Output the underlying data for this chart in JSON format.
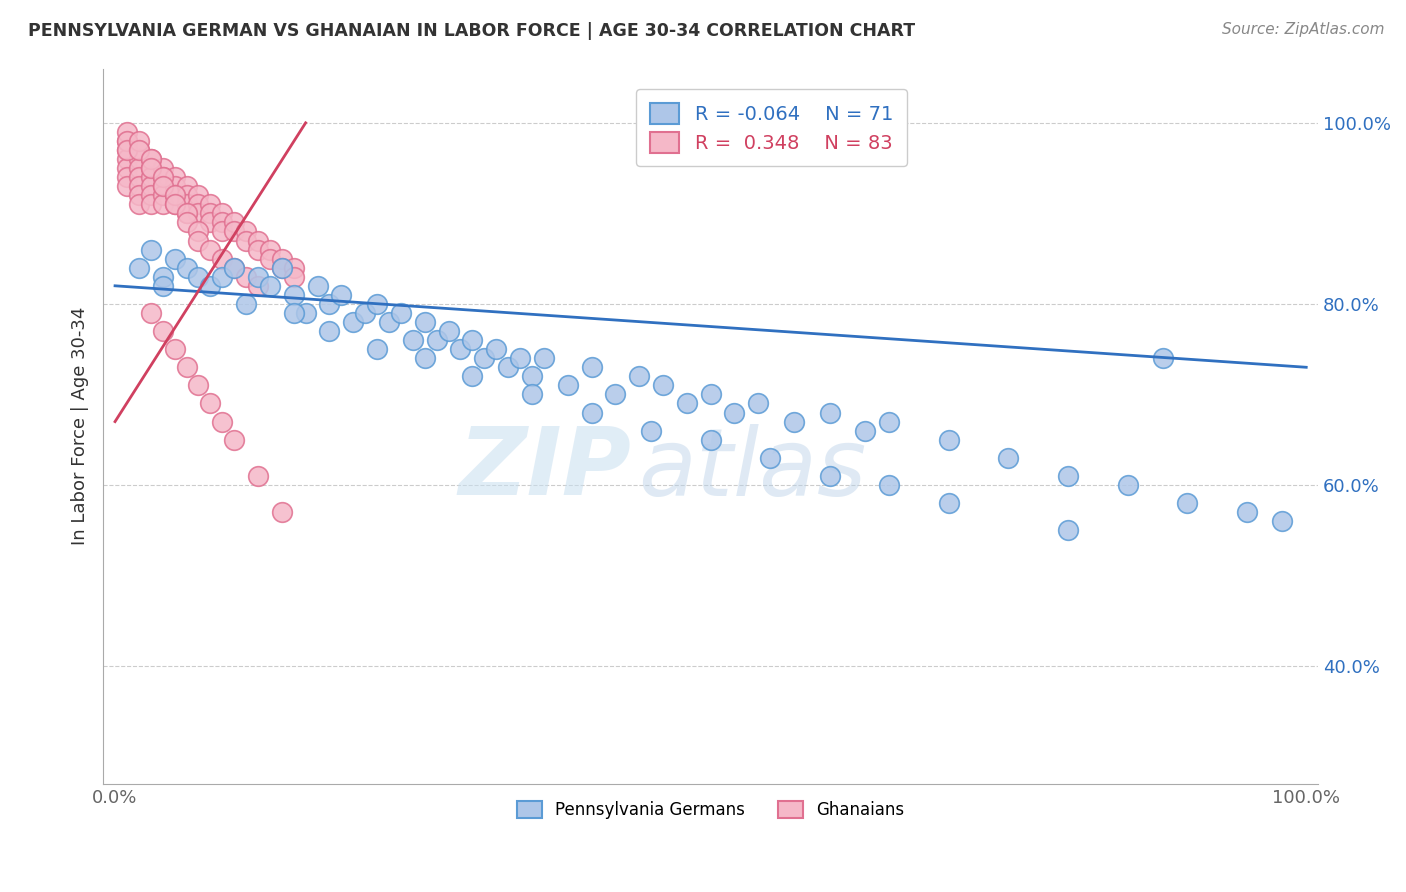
{
  "title": "PENNSYLVANIA GERMAN VS GHANAIAN IN LABOR FORCE | AGE 30-34 CORRELATION CHART",
  "source": "Source: ZipAtlas.com",
  "ylabel": "In Labor Force | Age 30-34",
  "blue_label": "Pennsylvania Germans",
  "pink_label": "Ghanaians",
  "blue_R": -0.064,
  "blue_N": 71,
  "pink_R": 0.348,
  "pink_N": 83,
  "blue_color": "#aec6e8",
  "blue_edge": "#5b9bd5",
  "pink_color": "#f5b8c8",
  "pink_edge": "#e07090",
  "trend_blue": "#3070c0",
  "trend_pink": "#d04060",
  "blue_x": [
    2,
    3,
    4,
    4,
    5,
    6,
    7,
    8,
    9,
    10,
    11,
    12,
    13,
    14,
    15,
    16,
    17,
    18,
    19,
    20,
    21,
    22,
    23,
    24,
    25,
    26,
    27,
    28,
    29,
    30,
    31,
    32,
    33,
    34,
    35,
    36,
    38,
    40,
    42,
    44,
    46,
    48,
    50,
    52,
    54,
    57,
    60,
    63,
    65,
    70,
    75,
    80,
    85,
    90,
    95,
    98,
    15,
    18,
    22,
    26,
    30,
    35,
    40,
    45,
    50,
    55,
    60,
    65,
    70,
    80,
    88
  ],
  "blue_y": [
    84,
    86,
    83,
    82,
    85,
    84,
    83,
    82,
    83,
    84,
    80,
    83,
    82,
    84,
    81,
    79,
    82,
    80,
    81,
    78,
    79,
    80,
    78,
    79,
    76,
    78,
    76,
    77,
    75,
    76,
    74,
    75,
    73,
    74,
    72,
    74,
    71,
    73,
    70,
    72,
    71,
    69,
    70,
    68,
    69,
    67,
    68,
    66,
    67,
    65,
    63,
    61,
    60,
    58,
    57,
    56,
    79,
    77,
    75,
    74,
    72,
    70,
    68,
    66,
    65,
    63,
    61,
    60,
    58,
    55,
    74
  ],
  "pink_x": [
    1,
    1,
    1,
    1,
    1,
    1,
    2,
    2,
    2,
    2,
    2,
    2,
    2,
    3,
    3,
    3,
    3,
    3,
    3,
    4,
    4,
    4,
    4,
    4,
    5,
    5,
    5,
    5,
    6,
    6,
    6,
    6,
    7,
    7,
    7,
    8,
    8,
    8,
    9,
    9,
    9,
    10,
    10,
    11,
    11,
    12,
    12,
    13,
    13,
    14,
    14,
    15,
    15,
    1,
    1,
    1,
    2,
    2,
    3,
    3,
    4,
    4,
    5,
    5,
    6,
    6,
    7,
    7,
    8,
    9,
    10,
    11,
    12,
    3,
    4,
    5,
    6,
    7,
    8,
    9,
    10,
    12,
    14
  ],
  "pink_y": [
    98,
    97,
    96,
    95,
    94,
    93,
    97,
    96,
    95,
    94,
    93,
    92,
    91,
    96,
    95,
    94,
    93,
    92,
    91,
    95,
    94,
    93,
    92,
    91,
    94,
    93,
    92,
    91,
    93,
    92,
    91,
    90,
    92,
    91,
    90,
    91,
    90,
    89,
    90,
    89,
    88,
    89,
    88,
    88,
    87,
    87,
    86,
    86,
    85,
    85,
    84,
    84,
    83,
    99,
    98,
    97,
    98,
    97,
    96,
    95,
    94,
    93,
    92,
    91,
    90,
    89,
    88,
    87,
    86,
    85,
    84,
    83,
    82,
    79,
    77,
    75,
    73,
    71,
    69,
    67,
    65,
    61,
    57
  ],
  "blue_trend_x": [
    0,
    100
  ],
  "blue_trend_y": [
    82,
    73
  ],
  "pink_trend_x": [
    0,
    16
  ],
  "pink_trend_y": [
    67,
    100
  ],
  "xlim": [
    0,
    100
  ],
  "ylim": [
    27,
    106
  ],
  "ytick_positions": [
    40,
    60,
    80,
    100
  ],
  "ytick_labels": [
    "40.0%",
    "60.0%",
    "80.0%",
    "100.0%"
  ],
  "xtick_positions": [
    0,
    100
  ],
  "xtick_labels": [
    "0.0%",
    "100.0%"
  ],
  "watermark_zip": "ZIP",
  "watermark_atlas": "atlas",
  "background_color": "#ffffff",
  "grid_color": "#cccccc"
}
